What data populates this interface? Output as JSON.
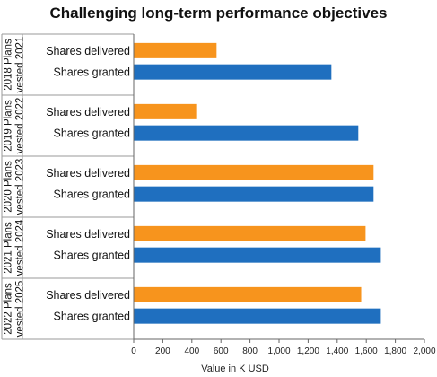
{
  "chart_data": {
    "type": "bar",
    "orientation": "horizontal",
    "title": "Challenging long-term performance objectives",
    "xlabel": "Value in K USD",
    "ylabel": "",
    "xlim": [
      0,
      2000
    ],
    "xticks": [
      "0",
      "200",
      "400",
      "600",
      "800",
      "1,000",
      "1,200",
      "1,400",
      "1,600",
      "1,800",
      "2,000"
    ],
    "grid": false,
    "legend": "none",
    "groups": [
      {
        "label_line1": "2018 Plans",
        "label_line2": "vested 2021",
        "bars": [
          {
            "label": "Shares delivered",
            "value": 570
          },
          {
            "label": "Shares granted",
            "value": 1360
          }
        ]
      },
      {
        "label_line1": "2019 Plans",
        "label_line2": "vested 2022",
        "bars": [
          {
            "label": "Shares delivered",
            "value": 430
          },
          {
            "label": "Shares granted",
            "value": 1545
          }
        ]
      },
      {
        "label_line1": "2020 Plans",
        "label_line2": "vested 2023",
        "bars": [
          {
            "label": "Shares delivered",
            "value": 1650
          },
          {
            "label": "Shares granted",
            "value": 1650
          }
        ]
      },
      {
        "label_line1": "2021 Plans",
        "label_line2": "vested 2024",
        "bars": [
          {
            "label": "Shares delivered",
            "value": 1595
          },
          {
            "label": "Shares granted",
            "value": 1700
          }
        ]
      },
      {
        "label_line1": "2022 Plans",
        "label_line2": "vested 2025",
        "bars": [
          {
            "label": "Shares delivered",
            "value": 1565
          },
          {
            "label": "Shares granted",
            "value": 1700
          }
        ]
      }
    ],
    "colors": {
      "Shares delivered": "#f7941d",
      "Shares granted": "#1f6fbf"
    }
  }
}
